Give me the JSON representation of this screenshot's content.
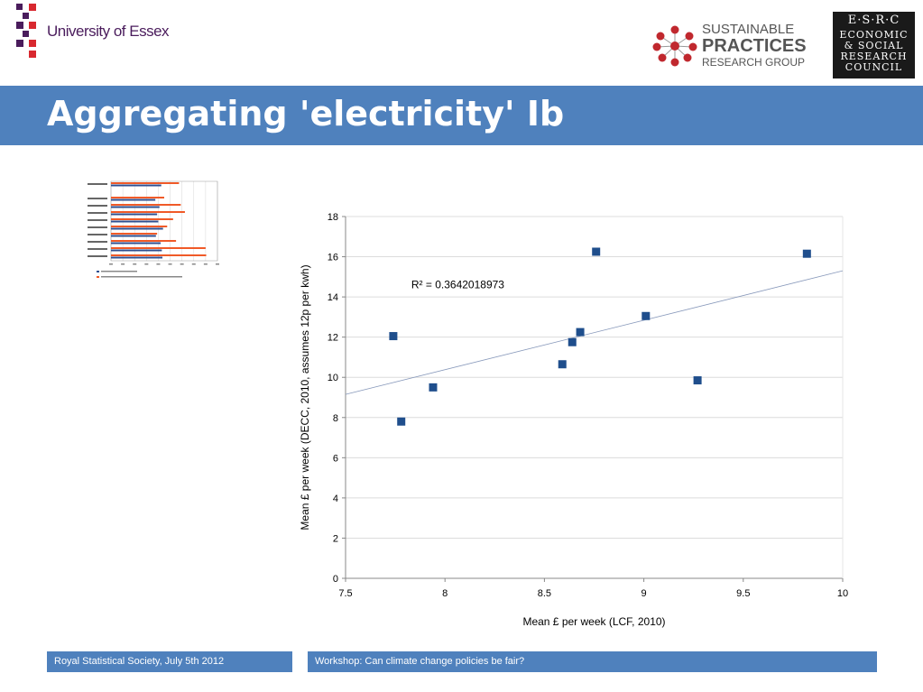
{
  "header": {
    "university": "University of Essex",
    "sprg": [
      "SUSTAINABLE",
      "PRACTICES",
      "RESEARCH GROUP"
    ],
    "esrc": [
      "E·S·R·C",
      "ECONOMIC",
      "& SOCIAL",
      "RESEARCH",
      "COUNCIL"
    ]
  },
  "title": "Aggregating 'electricity' Ib",
  "footer": {
    "left": "Royal Statistical Society, July 5th 2012",
    "right": "Workshop: Can climate change policies be fair?"
  },
  "colors": {
    "title_bar": "#4f81bd",
    "marker": "#1f4e8c",
    "thumb_bar_orange": "#f05a28",
    "thumb_bar_blue": "#2f4f8f"
  },
  "thumbnail_chart": {
    "type": "bar",
    "series_count": 2,
    "rows": 11,
    "values_a": [
      8.5,
      0,
      7.5,
      8.2,
      7.8,
      8.0,
      8.8,
      7.6,
      8.4,
      8.6,
      8.7
    ],
    "values_b": [
      11.5,
      0,
      9.0,
      11.8,
      12.5,
      10.5,
      9.5,
      7.8,
      11.0,
      16.0,
      16.1
    ],
    "xlim": [
      0,
      18
    ]
  },
  "chart_data": {
    "type": "scatter",
    "title": "",
    "xlabel": "Mean £ per week (LCF, 2010)",
    "ylabel": "Mean £ per week (DECC, 2010, assumes 12p per kwh)",
    "xlim": [
      7.5,
      10
    ],
    "ylim": [
      0,
      18
    ],
    "xticks": [
      "7.5",
      "8",
      "8.5",
      "9",
      "9.5",
      "10"
    ],
    "yticks": [
      "0",
      "2",
      "4",
      "6",
      "8",
      "10",
      "12",
      "14",
      "16",
      "18"
    ],
    "grid": "horizontal",
    "annotation": "R² = 0.3642018973",
    "points": [
      {
        "x": 7.74,
        "y": 12.05
      },
      {
        "x": 7.78,
        "y": 7.8
      },
      {
        "x": 7.94,
        "y": 9.5
      },
      {
        "x": 8.59,
        "y": 10.65
      },
      {
        "x": 8.64,
        "y": 11.75
      },
      {
        "x": 8.68,
        "y": 12.25
      },
      {
        "x": 8.76,
        "y": 16.25
      },
      {
        "x": 9.01,
        "y": 13.05
      },
      {
        "x": 9.27,
        "y": 9.85
      },
      {
        "x": 9.82,
        "y": 16.15
      }
    ],
    "trendline": {
      "x": [
        7.5,
        10
      ],
      "y": [
        9.15,
        15.3
      ]
    }
  }
}
